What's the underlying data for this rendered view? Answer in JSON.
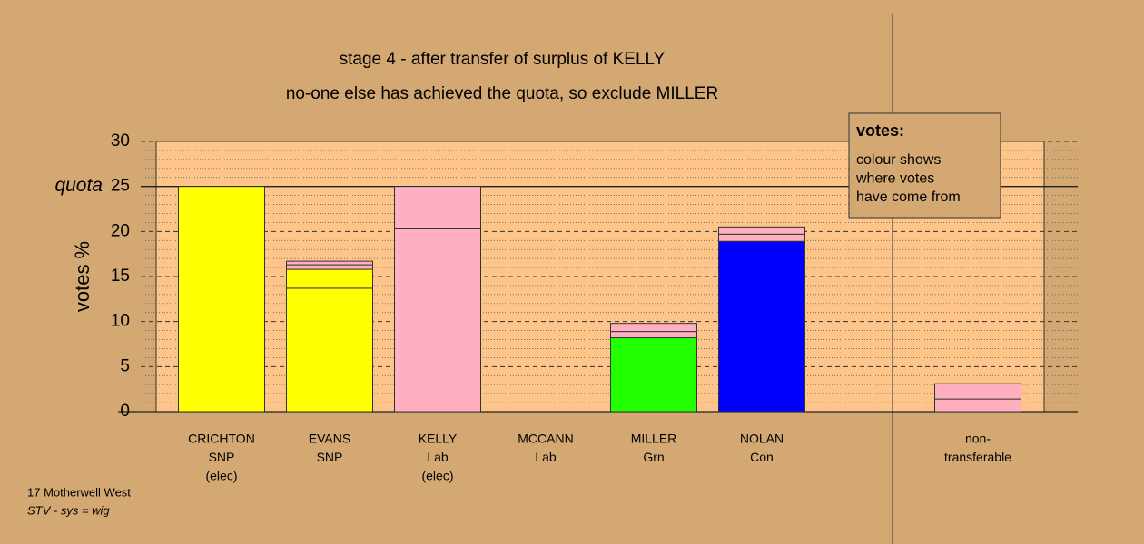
{
  "chart_data": {
    "type": "stacked-bar",
    "title": "stage 4 - after transfer of surplus of KELLY",
    "subtitle": "no-one else has achieved the quota, so exclude MILLER",
    "y_label": "votes %",
    "quota_label": "quota",
    "quota": 25,
    "ylim": [
      0,
      30
    ],
    "yticks": [
      0,
      5,
      10,
      15,
      20,
      25,
      30
    ],
    "minor_yticks": [
      1,
      2,
      3,
      4,
      6,
      7,
      8,
      9,
      11,
      12,
      13,
      14,
      16,
      17,
      18,
      19,
      21,
      22,
      23,
      24,
      26,
      27,
      28,
      29
    ],
    "bars": [
      {
        "label": [
          "CRICHTON",
          "SNP",
          "(elec)"
        ],
        "segments": [
          {
            "value": 25,
            "color": "#ffff00"
          }
        ]
      },
      {
        "label": [
          "EVANS",
          "SNP"
        ],
        "segments": [
          {
            "value": 13.7,
            "color": "#ffff00"
          },
          {
            "value": 2.1,
            "color": "#ffff00"
          },
          {
            "value": 0.5,
            "color": "#ffb0c0"
          },
          {
            "value": 0.4,
            "color": "#ffb0c0"
          }
        ]
      },
      {
        "label": [
          "KELLY",
          "Lab",
          "(elec)"
        ],
        "segments": [
          {
            "value": 20.3,
            "color": "#ffb0c0"
          },
          {
            "value": 4.7,
            "color": "#ffb0c0"
          }
        ]
      },
      {
        "label": [
          "MCCANN",
          "Lab"
        ],
        "segments": []
      },
      {
        "label": [
          "MILLER",
          "Grn"
        ],
        "segments": [
          {
            "value": 8.2,
            "color": "#22ff00"
          },
          {
            "value": 0.7,
            "color": "#ffb0c0"
          },
          {
            "value": 0.9,
            "color": "#ffb0c0"
          }
        ]
      },
      {
        "label": [
          "NOLAN",
          "Con"
        ],
        "segments": [
          {
            "value": 18.9,
            "color": "#0000ff"
          },
          {
            "value": 0.8,
            "color": "#ffb0c0"
          },
          {
            "value": 0.8,
            "color": "#ffb0c0"
          }
        ]
      },
      {
        "label": [
          "non-",
          "transferable"
        ],
        "segments": [
          {
            "value": 1.4,
            "color": "#ffb0c0"
          },
          {
            "value": 1.7,
            "color": "#ffb0c0"
          }
        ]
      }
    ],
    "legend": {
      "title": "votes:",
      "lines": [
        "colour shows",
        "where votes",
        "have come from"
      ]
    },
    "footer": [
      "17 Motherwell West",
      "STV - sys = wig"
    ]
  }
}
